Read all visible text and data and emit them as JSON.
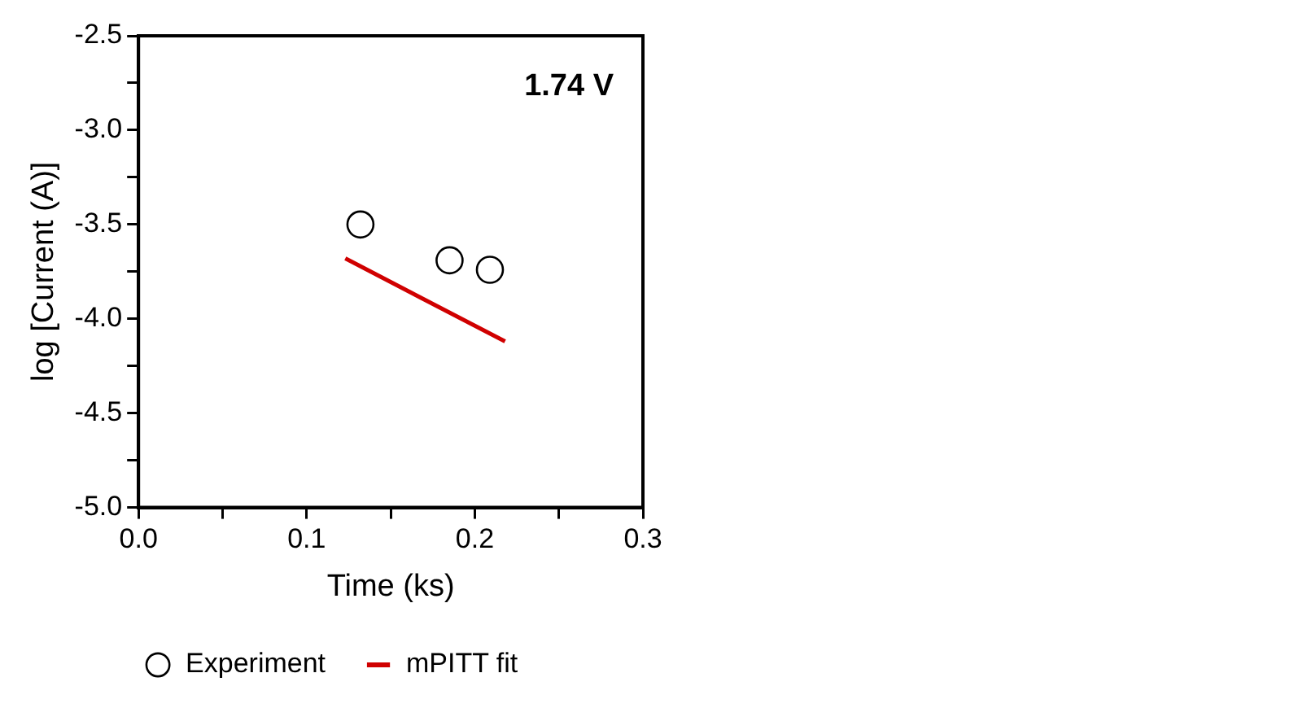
{
  "chart_data": {
    "type": "scatter",
    "xlabel": "Time (ks)",
    "ylabel": "log [Current (A)]",
    "annotations": [
      "1.74 V"
    ],
    "series": [
      {
        "name": "Experiment",
        "color": "#000000",
        "marker": "circle",
        "x": [
          0.132,
          0.185,
          0.209
        ],
        "values": [
          -3.5,
          -3.69,
          -3.74
        ]
      },
      {
        "name": "mPITT fit",
        "type": "line",
        "color": "#d00000",
        "marker": "none",
        "x": [
          0.123,
          0.218
        ],
        "values": [
          -3.68,
          -4.12
        ]
      }
    ],
    "xlim": [
      0,
      0.3
    ],
    "ylim": [
      -5,
      -2.5
    ],
    "xticks": [
      {
        "value": 0,
        "label": "0.0"
      },
      {
        "value": 0.05,
        "label": null
      },
      {
        "value": 0.1,
        "label": "0.1"
      },
      {
        "value": 0.15,
        "label": null
      },
      {
        "value": 0.2,
        "label": "0.2"
      },
      {
        "value": 0.25,
        "label": null
      },
      {
        "value": 0.3,
        "label": "0.3"
      }
    ],
    "yticks": [
      {
        "value": -5,
        "label": "-5.0"
      },
      {
        "value": -4.75,
        "label": null
      },
      {
        "value": -4.5,
        "label": "-4.5"
      },
      {
        "value": -4.25,
        "label": null
      },
      {
        "value": -4,
        "label": "-4.0"
      },
      {
        "value": -3.75,
        "label": null
      },
      {
        "value": -3.5,
        "label": "-3.5"
      },
      {
        "value": -3.25,
        "label": null
      },
      {
        "value": -3,
        "label": "-3.0"
      },
      {
        "value": -2.75,
        "label": null
      },
      {
        "value": -2.5,
        "label": "-2.5"
      }
    ],
    "grid": false,
    "legend": "bottom"
  }
}
